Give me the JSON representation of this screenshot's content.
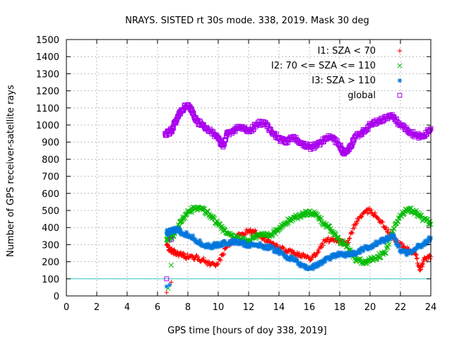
{
  "chart_data": {
    "type": "scatter",
    "title": "NRAYS. SISTED rt 30s mode. 338, 2019. Mask 30 deg",
    "xlabel": "GPS time [hours of doy 338, 2019]",
    "ylabel": "Number of GPS receiver-satellite rays",
    "xlim": [
      0,
      24
    ],
    "ylim": [
      0,
      1500
    ],
    "x_ticks": [
      0,
      2,
      4,
      6,
      8,
      10,
      12,
      14,
      16,
      18,
      20,
      22,
      24
    ],
    "y_ticks": [
      0,
      100,
      200,
      300,
      400,
      500,
      600,
      700,
      800,
      900,
      1000,
      1100,
      1200,
      1300,
      1400,
      1500
    ],
    "grid": true,
    "legend_position": "top-right",
    "reference_line": {
      "y": 100,
      "color": "#33cccc"
    },
    "series": [
      {
        "name": "I1: SZA < 70",
        "color": "#ff0000",
        "marker": "+",
        "x": [
          6.6,
          6.8,
          7.0,
          7.3,
          7.6,
          8.0,
          8.5,
          9.0,
          9.5,
          10.0,
          10.5,
          11.0,
          11.5,
          12.0,
          12.5,
          13.0,
          13.5,
          14.0,
          14.5,
          15.0,
          15.5,
          16.0,
          16.5,
          17.0,
          17.5,
          18.0,
          18.5,
          19.0,
          19.5,
          20.0,
          20.5,
          21.0,
          21.5,
          22.0,
          22.5,
          23.0,
          23.3,
          23.6,
          24.0
        ],
        "y": [
          300,
          270,
          260,
          250,
          240,
          230,
          225,
          210,
          185,
          190,
          280,
          330,
          360,
          380,
          370,
          340,
          310,
          280,
          265,
          255,
          240,
          220,
          250,
          320,
          335,
          320,
          300,
          420,
          480,
          500,
          460,
          400,
          340,
          300,
          270,
          240,
          150,
          220,
          230
        ]
      },
      {
        "name": "I2: 70 <= SZA <= 110",
        "color": "#00bb00",
        "marker": "x",
        "x": [
          6.6,
          6.8,
          7.0,
          7.3,
          7.6,
          8.0,
          8.5,
          9.0,
          9.5,
          10.0,
          10.5,
          11.0,
          11.5,
          12.0,
          12.5,
          13.0,
          13.5,
          14.0,
          14.5,
          15.0,
          15.5,
          16.0,
          16.5,
          17.0,
          17.5,
          18.0,
          18.5,
          19.0,
          19.5,
          20.0,
          20.5,
          21.0,
          21.5,
          22.0,
          22.5,
          23.0,
          23.5,
          24.0
        ],
        "y": [
          330,
          340,
          350,
          390,
          440,
          500,
          510,
          505,
          470,
          420,
          370,
          340,
          330,
          320,
          350,
          360,
          360,
          390,
          430,
          460,
          470,
          495,
          470,
          420,
          380,
          320,
          290,
          220,
          200,
          210,
          230,
          250,
          380,
          470,
          510,
          490,
          450,
          420
        ]
      },
      {
        "name": "I3: SZA > 110",
        "color": "#0077dd",
        "marker": "*",
        "x": [
          6.6,
          6.8,
          7.0,
          7.3,
          7.6,
          8.0,
          8.5,
          9.0,
          9.5,
          10.0,
          10.5,
          11.0,
          11.5,
          12.0,
          12.5,
          13.0,
          13.5,
          14.0,
          14.5,
          15.0,
          15.5,
          16.0,
          16.5,
          17.0,
          17.5,
          18.0,
          18.5,
          19.0,
          19.5,
          20.0,
          20.5,
          21.0,
          21.5,
          22.0,
          22.5,
          23.0,
          23.5,
          24.0
        ],
        "y": [
          370,
          375,
          380,
          390,
          370,
          360,
          330,
          300,
          290,
          300,
          310,
          315,
          310,
          300,
          300,
          290,
          280,
          260,
          230,
          210,
          180,
          160,
          180,
          210,
          230,
          250,
          240,
          250,
          270,
          290,
          310,
          330,
          350,
          270,
          250,
          280,
          300,
          340
        ]
      },
      {
        "name": "global",
        "color": "#aa00ee",
        "marker": "square",
        "x": [
          6.5,
          6.8,
          7.0,
          7.3,
          7.6,
          8.0,
          8.3,
          8.6,
          9.0,
          9.5,
          10.0,
          10.3,
          10.6,
          11.0,
          11.5,
          12.0,
          12.5,
          13.0,
          13.5,
          14.0,
          14.5,
          15.0,
          15.5,
          16.0,
          16.5,
          17.0,
          17.5,
          18.0,
          18.3,
          18.7,
          19.0,
          19.5,
          20.0,
          20.5,
          21.0,
          21.5,
          22.0,
          22.5,
          23.0,
          23.5,
          24.0
        ],
        "y": [
          950,
          960,
          980,
          1040,
          1090,
          1120,
          1080,
          1020,
          1000,
          960,
          920,
          880,
          950,
          970,
          990,
          960,
          1000,
          1020,
          960,
          920,
          900,
          930,
          890,
          870,
          880,
          920,
          930,
          880,
          830,
          870,
          930,
          960,
          1000,
          1020,
          1040,
          1050,
          1000,
          970,
          940,
          930,
          980
        ]
      }
    ],
    "early_points": [
      {
        "series": "I1: SZA < 70",
        "x": [
          6.6,
          6.9
        ],
        "y": [
          20,
          80
        ]
      },
      {
        "series": "I2: 70 <= SZA <= 110",
        "x": [
          6.7,
          6.9
        ],
        "y": [
          45,
          180
        ]
      },
      {
        "series": "I3: SZA > 110",
        "x": [
          6.6,
          6.8
        ],
        "y": [
          55,
          65
        ]
      },
      {
        "series": "global",
        "x": [
          6.6,
          6.9
        ],
        "y": [
          100,
          330
        ]
      }
    ]
  }
}
